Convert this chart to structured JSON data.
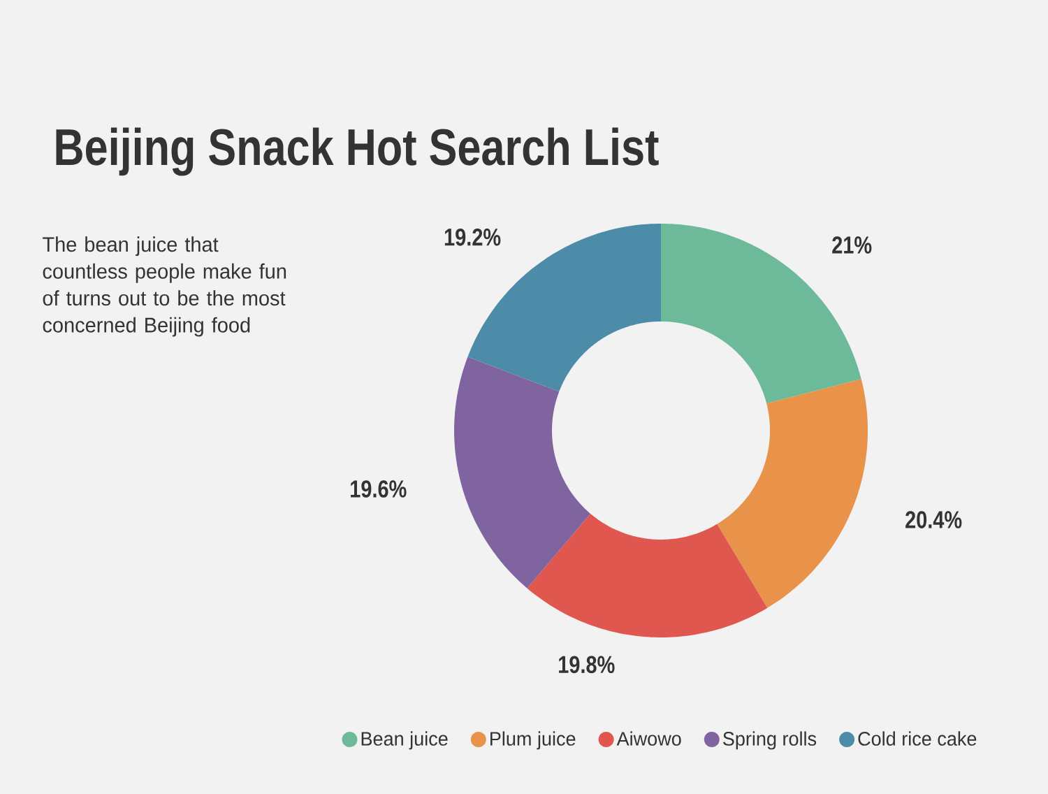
{
  "chart_data": {
    "type": "donut",
    "title": "Beijing Snack Hot Search List",
    "subtitle": "The bean juice that countless people make fun of turns out to be the most concerned Beijing food",
    "categories": [
      "Bean juice",
      "Plum juice",
      "Aiwowo",
      "Spring rolls",
      "Cold rice cake"
    ],
    "values": [
      21,
      20.4,
      19.8,
      19.6,
      19.2
    ],
    "value_labels": [
      "21%",
      "20.4%",
      "19.8%",
      "19.6%",
      "19.2%"
    ],
    "colors": [
      "#6dba9b",
      "#e8924a",
      "#e0574f",
      "#7f64a0",
      "#4d8ca8"
    ],
    "legend": "bottom"
  }
}
